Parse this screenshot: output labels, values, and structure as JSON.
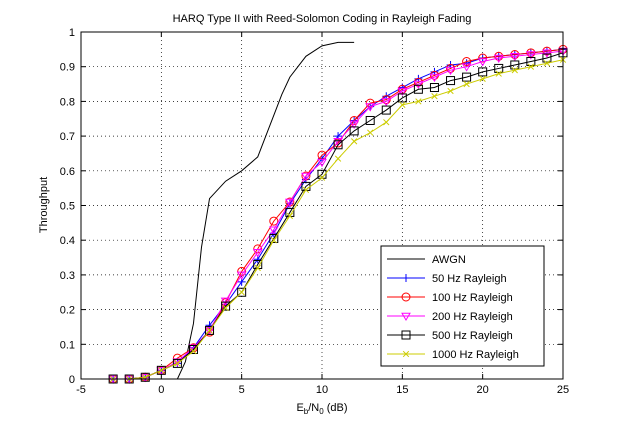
{
  "chart_data": {
    "type": "line",
    "title": "HARQ Type II with Reed-Solomon Coding in Rayleigh Fading",
    "xlabel": {
      "main": "E",
      "sub1": "b",
      "mid": "/N",
      "sub2": "0",
      "tail": " (dB)"
    },
    "ylabel": "Throughput",
    "xlim": [
      -5,
      25
    ],
    "ylim": [
      0,
      1
    ],
    "xticks": [
      -5,
      0,
      5,
      10,
      15,
      20,
      25
    ],
    "yticks": [
      0,
      0.1,
      0.2,
      0.3,
      0.4,
      0.5,
      0.6,
      0.7,
      0.8,
      0.9,
      1
    ],
    "xtick_labels": [
      "-5",
      "0",
      "5",
      "10",
      "15",
      "20",
      "25"
    ],
    "ytick_labels": [
      "0",
      "0.1",
      "0.2",
      "0.3",
      "0.4",
      "0.5",
      "0.6",
      "0.7",
      "0.8",
      "0.9",
      "1"
    ],
    "grid": "dotted",
    "legend_position": "bottom-right",
    "series": [
      {
        "name": "AWGN",
        "color": "#000000",
        "marker": "none",
        "x": [
          1,
          1.5,
          2,
          2.5,
          3,
          4,
          5,
          6,
          7,
          7.5,
          8,
          9,
          10,
          11,
          12
        ],
        "y": [
          0,
          0.05,
          0.16,
          0.38,
          0.52,
          0.57,
          0.6,
          0.64,
          0.76,
          0.82,
          0.87,
          0.93,
          0.96,
          0.97,
          0.97
        ]
      },
      {
        "name": "50 Hz Rayleigh",
        "color": "#0000ff",
        "marker": "plus",
        "x": [
          -3,
          -2,
          -1,
          0,
          1,
          2,
          3,
          4,
          5,
          6,
          7,
          8,
          9,
          10,
          11,
          12,
          13,
          14,
          15,
          16,
          17,
          18,
          19,
          20,
          21,
          22,
          23,
          24,
          25
        ],
        "y": [
          0,
          0,
          0.005,
          0.025,
          0.045,
          0.09,
          0.155,
          0.215,
          0.28,
          0.345,
          0.42,
          0.505,
          0.575,
          0.635,
          0.7,
          0.745,
          0.785,
          0.815,
          0.84,
          0.865,
          0.885,
          0.905,
          0.91,
          0.925,
          0.93,
          0.935,
          0.94,
          0.945,
          0.95
        ]
      },
      {
        "name": "100 Hz Rayleigh",
        "color": "#ff0000",
        "marker": "circle",
        "x": [
          -3,
          -2,
          -1,
          0,
          1,
          2,
          3,
          4,
          5,
          6,
          7,
          8,
          9,
          10,
          11,
          12,
          13,
          14,
          15,
          16,
          17,
          18,
          19,
          20,
          21,
          22,
          23,
          24,
          25
        ],
        "y": [
          0,
          0,
          0.005,
          0.025,
          0.06,
          0.09,
          0.135,
          0.22,
          0.31,
          0.375,
          0.455,
          0.51,
          0.585,
          0.645,
          0.68,
          0.745,
          0.795,
          0.805,
          0.835,
          0.855,
          0.875,
          0.895,
          0.915,
          0.925,
          0.93,
          0.935,
          0.94,
          0.945,
          0.95
        ]
      },
      {
        "name": "200 Hz Rayleigh",
        "color": "#ff00ff",
        "marker": "triangle-down",
        "x": [
          -3,
          -2,
          -1,
          0,
          1,
          2,
          3,
          4,
          5,
          6,
          7,
          8,
          9,
          10,
          11,
          12,
          13,
          14,
          15,
          16,
          17,
          18,
          19,
          20,
          21,
          22,
          23,
          24,
          25
        ],
        "y": [
          0,
          0,
          0.005,
          0.025,
          0.05,
          0.09,
          0.14,
          0.225,
          0.3,
          0.365,
          0.43,
          0.51,
          0.585,
          0.625,
          0.685,
          0.735,
          0.785,
          0.8,
          0.83,
          0.85,
          0.87,
          0.89,
          0.9,
          0.915,
          0.925,
          0.93,
          0.935,
          0.94,
          0.945
        ]
      },
      {
        "name": "500 Hz Rayleigh",
        "color": "#000000",
        "marker": "square",
        "x": [
          -3,
          -2,
          -1,
          0,
          1,
          2,
          3,
          4,
          5,
          6,
          7,
          8,
          9,
          10,
          11,
          12,
          13,
          14,
          15,
          16,
          17,
          18,
          19,
          20,
          21,
          22,
          23,
          24,
          25
        ],
        "y": [
          0,
          0,
          0.005,
          0.025,
          0.045,
          0.085,
          0.14,
          0.21,
          0.25,
          0.33,
          0.405,
          0.48,
          0.555,
          0.59,
          0.675,
          0.715,
          0.745,
          0.775,
          0.81,
          0.835,
          0.84,
          0.86,
          0.87,
          0.885,
          0.895,
          0.905,
          0.915,
          0.925,
          0.94
        ]
      },
      {
        "name": "1000 Hz Rayleigh",
        "color": "#cccc00",
        "marker": "x",
        "x": [
          -3,
          -2,
          -1,
          0,
          1,
          2,
          3,
          4,
          5,
          6,
          7,
          8,
          9,
          10,
          11,
          12,
          13,
          14,
          15,
          16,
          17,
          18,
          19,
          20,
          21,
          22,
          23,
          24,
          25
        ],
        "y": [
          0,
          0,
          0.005,
          0.025,
          0.045,
          0.08,
          0.14,
          0.205,
          0.25,
          0.32,
          0.4,
          0.47,
          0.545,
          0.58,
          0.635,
          0.685,
          0.71,
          0.74,
          0.79,
          0.8,
          0.815,
          0.83,
          0.85,
          0.865,
          0.88,
          0.89,
          0.9,
          0.91,
          0.92
        ]
      }
    ]
  }
}
